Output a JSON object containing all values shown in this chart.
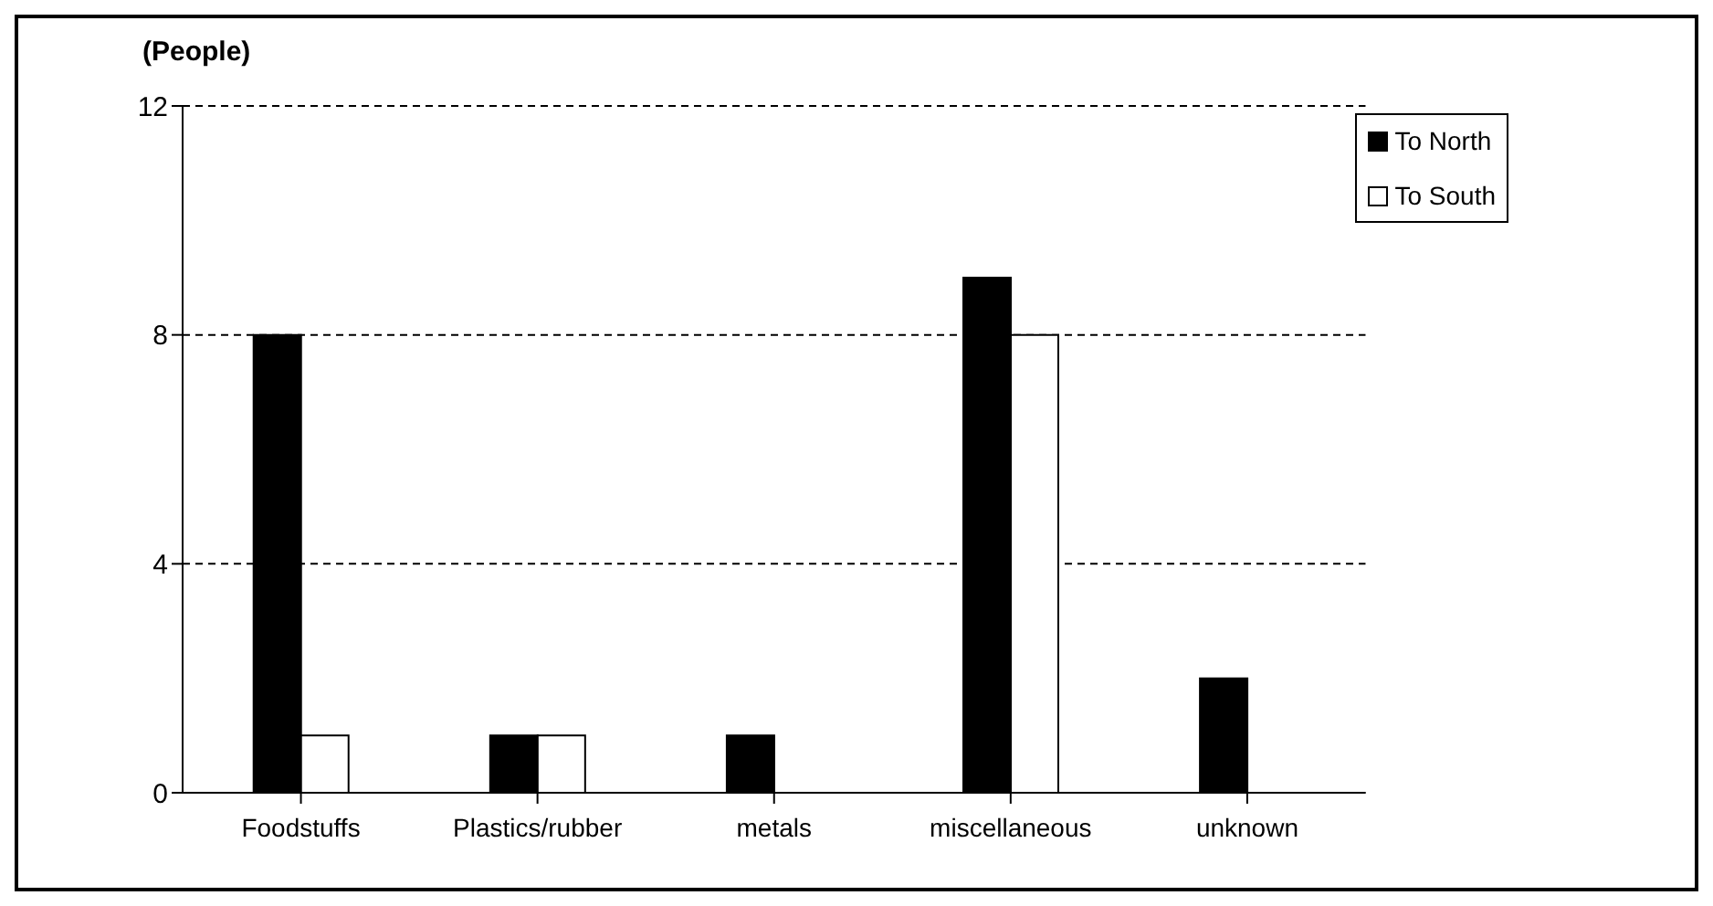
{
  "chart_data": {
    "type": "bar",
    "ylabel": "(People)",
    "categories": [
      "Foodstuffs",
      "Plastics/rubber",
      "metals",
      "miscellaneous",
      "unknown"
    ],
    "series": [
      {
        "name": "To North",
        "color": "#000000",
        "values": [
          8,
          1,
          1,
          9,
          2
        ]
      },
      {
        "name": "To South",
        "color": "#ffffff",
        "values": [
          1,
          1,
          null,
          8,
          null
        ]
      }
    ],
    "ylim": [
      0,
      12
    ],
    "yticks": [
      0,
      4,
      8,
      12
    ],
    "grid": "y",
    "legend": "top right"
  }
}
